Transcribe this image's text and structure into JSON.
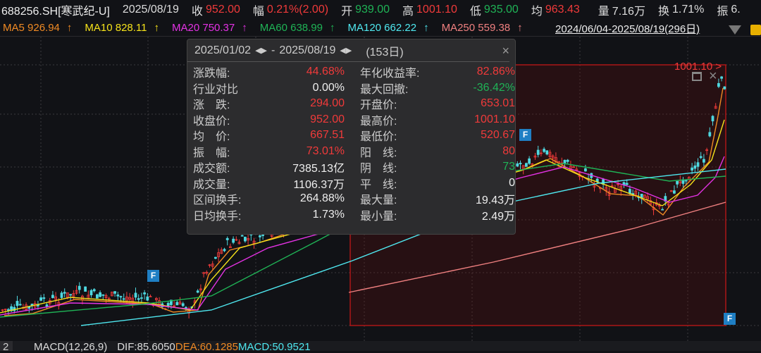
{
  "header": {
    "symbol": "688256.SH[寒武纪-U]",
    "date": "2025/08/19",
    "close_label": "收",
    "close": "952.00",
    "change_label": "幅",
    "change": "0.21%(2.00)",
    "open_label": "开",
    "open": "939.00",
    "high_label": "高",
    "high": "1001.10",
    "low_label": "低",
    "low": "935.00",
    "avg_label": "均",
    "avg": "963.43",
    "vol_label": "量",
    "vol": "7.16万",
    "turn_label": "换",
    "turn": "1.71%",
    "amp_label": "振",
    "amp": "6."
  },
  "ma": [
    {
      "label": "MA5 926.94",
      "arrow": "↑",
      "color": "#f08a24"
    },
    {
      "label": "MA10 828.11",
      "arrow": "↑",
      "color": "#f5e21b"
    },
    {
      "label": "MA20 750.37",
      "arrow": "↑",
      "color": "#e432e4"
    },
    {
      "label": "MA60 638.99",
      "arrow": "↑",
      "color": "#1fb356"
    },
    {
      "label": "MA120 662.22",
      "arrow": "↑",
      "color": "#4fe8f0"
    },
    {
      "label": "MA250 559.38",
      "arrow": "↑",
      "color": "#f08080"
    }
  ],
  "range_text": "2024/06/04-2025/08/19(296日)",
  "tooltip": {
    "start": "2025/01/02",
    "end": "2025/08/19",
    "days": "(153日)",
    "close_icon": "×",
    "left": [
      {
        "label": "涨跌幅:",
        "value": "44.68%",
        "c": "red"
      },
      {
        "label": "行业对比",
        "value": "0.00%",
        "c": "wht"
      },
      {
        "label": "涨　跌:",
        "value": "294.00",
        "c": "red"
      },
      {
        "label": "收盘价:",
        "value": "952.00",
        "c": "red"
      },
      {
        "label": "均　价:",
        "value": "667.51",
        "c": "red"
      },
      {
        "label": "振　幅:",
        "value": "73.01%",
        "c": "red"
      },
      {
        "label": "成交额:",
        "value": "7385.13亿",
        "c": "wht"
      },
      {
        "label": "成交量:",
        "value": "1106.37万",
        "c": "wht"
      },
      {
        "label": "区间换手:",
        "value": "264.88%",
        "c": "wht"
      },
      {
        "label": "日均换手:",
        "value": "1.73%",
        "c": "wht"
      }
    ],
    "right": [
      {
        "label": "年化收益率:",
        "value": "82.86%",
        "c": "red"
      },
      {
        "label": "最大回撤:",
        "value": "-36.42%",
        "c": "grn"
      },
      {
        "label": "开盘价:",
        "value": "653.01",
        "c": "red"
      },
      {
        "label": "最高价:",
        "value": "1001.10",
        "c": "red"
      },
      {
        "label": "最低价:",
        "value": "520.67",
        "c": "red"
      },
      {
        "label": "阳　线:",
        "value": "80",
        "c": "red"
      },
      {
        "label": "阴　线:",
        "value": "73",
        "c": "grn"
      },
      {
        "label": "平　线:",
        "value": "0",
        "c": "wht"
      },
      {
        "label": "最大量:",
        "value": "19.43万",
        "c": "wht"
      },
      {
        "label": "最小量:",
        "value": "2.49万",
        "c": "wht"
      }
    ]
  },
  "high_marker": "1001.10",
  "flag_label": "F",
  "macd": {
    "index": "2",
    "title": "MACD(12,26,9)",
    "dif": "DIF:85.6050",
    "dea": "DEA:60.1285",
    "macd": "MACD:50.9521"
  },
  "colors": {
    "up": "#f03a3a",
    "down": "#4fd8e0",
    "selection": "#d01818"
  }
}
